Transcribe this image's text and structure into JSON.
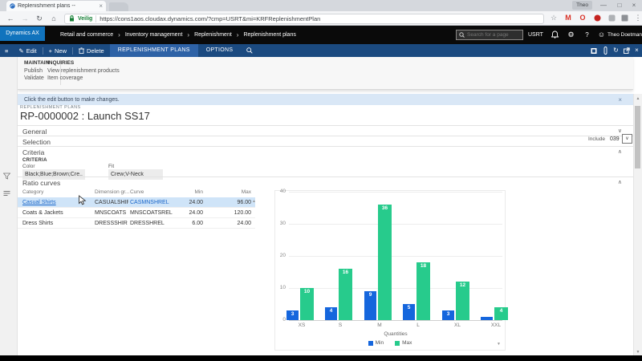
{
  "browser": {
    "tab_title": "Replenishment plans --",
    "profile_label": "Theo",
    "secure_label": "Veilig",
    "url": "https://cons1aos.cloudax.dynamics.com/?cmp=USRT&mi=KRFReplenishmentPlan"
  },
  "top_bar": {
    "brand": "Dynamics AX",
    "breadcrumb": [
      "Retail and commerce",
      "Inventory management",
      "Replenishment",
      "Replenishment plans"
    ],
    "search_placeholder": "Search for a page",
    "company": "USRT",
    "help_label": "?",
    "user": "Theo Doetman"
  },
  "command_bar": {
    "edit_label": "Edit",
    "new_label": "New",
    "delete_label": "Delete",
    "active_tab": "REPLENISHMENT PLANS",
    "options_tab": "OPTIONS"
  },
  "ribbon": {
    "maintain": {
      "title": "MAINTAIN",
      "items": [
        "Publish",
        "Validate"
      ]
    },
    "inquiries": {
      "title": "INQUIRIES",
      "items": [
        "View replenishment products",
        "Item coverage"
      ]
    }
  },
  "notification": {
    "message": "Click the edit button to make changes."
  },
  "page": {
    "caption": "REPLENISHMENT PLANS",
    "title": "RP-0000002 : Launch SS17",
    "sections": {
      "general": "General",
      "selection": "Selection",
      "criteria": "Criteria",
      "ratio_curves": "Ratio curves"
    },
    "selection_include_label": "Include",
    "selection_include_value": "039",
    "criteria_group_label": "CRITERIA",
    "fields": {
      "color_label": "Color",
      "color_value": "Black;Blue;Brown;Cre...",
      "fit_label": "Fit",
      "fit_value": "Crew;V-Neck"
    }
  },
  "grid": {
    "columns": [
      "Category",
      "Dimension gr...",
      "Curve",
      "Min",
      "Max"
    ],
    "rows": [
      {
        "category": "Casual Shirts",
        "dimension_group": "CASUALSHIR",
        "curve": "CASMNSHREL",
        "min": "24.00",
        "max": "96.00",
        "selected": true
      },
      {
        "category": "Coats & Jackets",
        "dimension_group": "MNSCOATS",
        "curve": "MNSCOATSREL",
        "min": "24.00",
        "max": "120.00",
        "selected": false
      },
      {
        "category": "Dress Shirts",
        "dimension_group": "DRESSSHIR",
        "curve": "DRESSHREL",
        "min": "6.00",
        "max": "24.00",
        "selected": false
      }
    ]
  },
  "chart_data": {
    "type": "bar",
    "categories": [
      "XS",
      "S",
      "M",
      "L",
      "XL",
      "XXL"
    ],
    "series": [
      {
        "name": "Min",
        "color": "#1566dd",
        "values": [
          3,
          4,
          9,
          5,
          3,
          1
        ]
      },
      {
        "name": "Max",
        "color": "#27cb8c",
        "values": [
          10,
          16,
          36,
          18,
          12,
          4
        ]
      }
    ],
    "xlabel": "Quantities",
    "ylabel": "",
    "ylim": [
      0,
      40
    ],
    "yticks": [
      0,
      10,
      20,
      30,
      40
    ],
    "grid": true,
    "legend_position": "bottom"
  },
  "colors": {
    "brand_blue": "#1173bd",
    "command_bar_blue": "#1b4a80",
    "active_tab_blue": "#2e62a6",
    "min_bar_blue": "#1566dd",
    "max_bar_green": "#27cb8c",
    "selected_row_blue": "#cfe4f8",
    "notification_blue": "#d9e7f6",
    "secure_green": "#188038"
  }
}
